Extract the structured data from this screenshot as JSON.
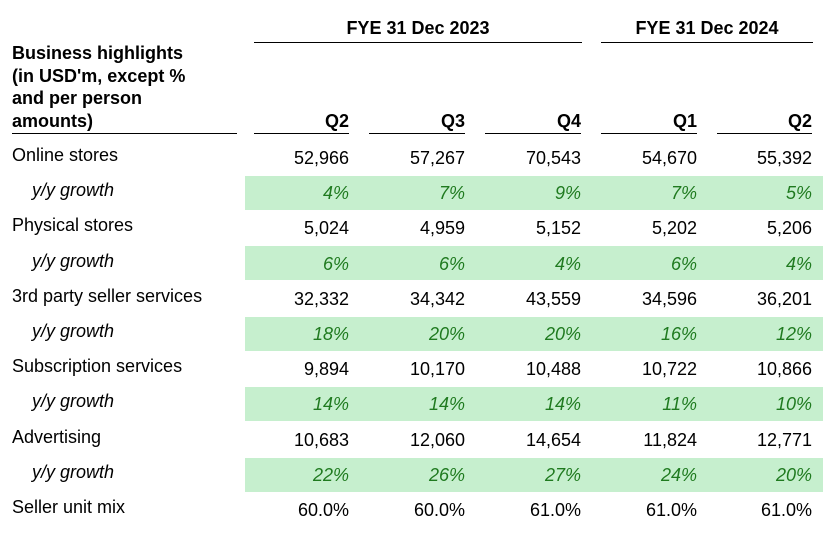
{
  "header": {
    "fy_groups": [
      "FYE 31 Dec 2023",
      "FYE 31 Dec 2024"
    ],
    "title_lines": [
      "Business highlights",
      "(in USD'm, except %",
      "and per person",
      "amounts)"
    ],
    "quarters": [
      "Q2",
      "Q3",
      "Q4",
      "Q1",
      "Q2"
    ]
  },
  "rows": [
    {
      "label": "Online stores",
      "type": "value",
      "values": [
        "52,966",
        "57,267",
        "70,543",
        "54,670",
        "55,392"
      ]
    },
    {
      "label": "y/y growth",
      "type": "growth",
      "values": [
        "4%",
        "7%",
        "9%",
        "7%",
        "5%"
      ]
    },
    {
      "label": "Physical stores",
      "type": "value",
      "values": [
        "5,024",
        "4,959",
        "5,152",
        "5,202",
        "5,206"
      ]
    },
    {
      "label": "y/y growth",
      "type": "growth",
      "values": [
        "6%",
        "6%",
        "4%",
        "6%",
        "4%"
      ]
    },
    {
      "label": "3rd party seller services",
      "type": "value",
      "values": [
        "32,332",
        "34,342",
        "43,559",
        "34,596",
        "36,201"
      ]
    },
    {
      "label": "y/y growth",
      "type": "growth",
      "values": [
        "18%",
        "20%",
        "20%",
        "16%",
        "12%"
      ]
    },
    {
      "label": "Subscription services",
      "type": "value",
      "values": [
        "9,894",
        "10,170",
        "10,488",
        "10,722",
        "10,866"
      ]
    },
    {
      "label": "y/y growth",
      "type": "growth",
      "values": [
        "14%",
        "14%",
        "14%",
        "11%",
        "10%"
      ]
    },
    {
      "label": "Advertising",
      "type": "value",
      "values": [
        "10,683",
        "12,060",
        "14,654",
        "11,824",
        "12,771"
      ]
    },
    {
      "label": "y/y growth",
      "type": "growth",
      "values": [
        "22%",
        "26%",
        "27%",
        "24%",
        "20%"
      ]
    },
    {
      "label": "Seller unit mix",
      "type": "value",
      "values": [
        "60.0%",
        "60.0%",
        "61.0%",
        "61.0%",
        "61.0%"
      ]
    }
  ],
  "colors": {
    "growth_band": "#c6efce",
    "growth_text": "#1f7a1f"
  }
}
